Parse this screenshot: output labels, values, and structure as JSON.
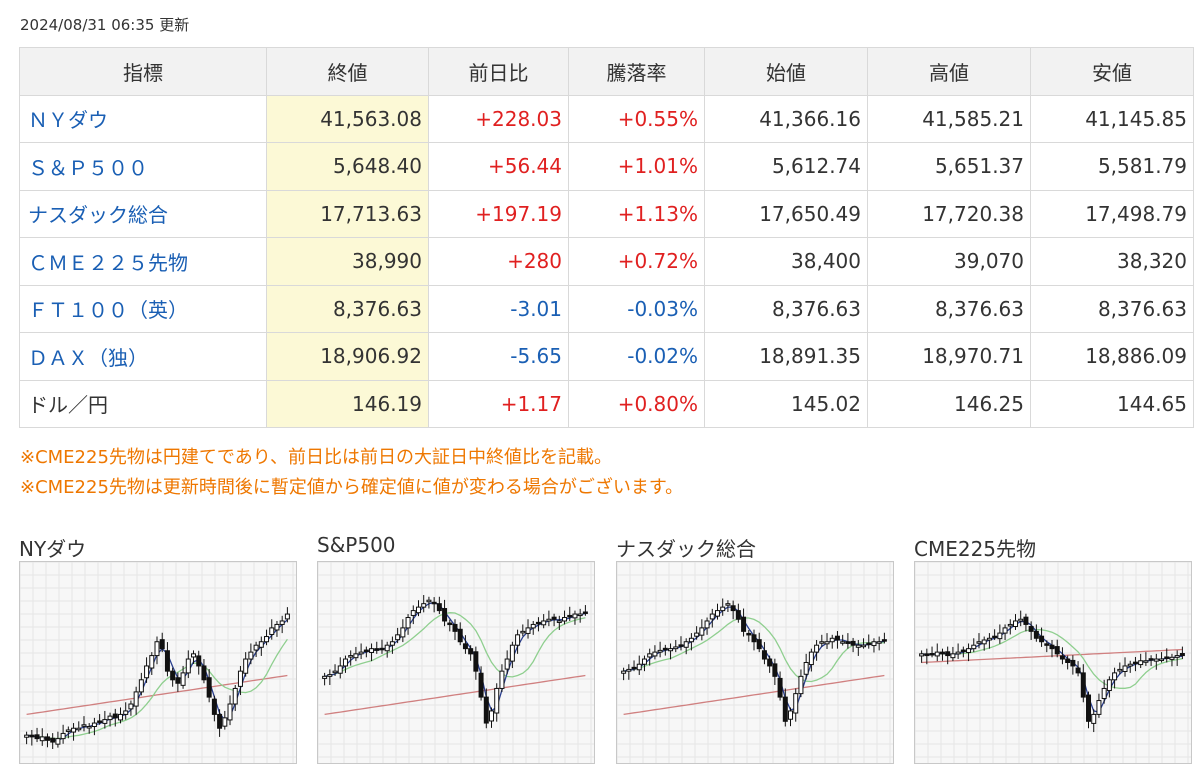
{
  "updated": "2024/08/31 06:35 更新",
  "table": {
    "headers": [
      "指標",
      "終値",
      "前日比",
      "騰落率",
      "始値",
      "高値",
      "安値"
    ],
    "rows": [
      {
        "name": "ＮＹダウ",
        "close": "41,563.08",
        "change": "+228.03",
        "rate": "+0.55%",
        "open": "41,366.16",
        "high": "41,585.21",
        "low": "41,145.85",
        "dir": "up",
        "link": true
      },
      {
        "name": "Ｓ＆Ｐ５００",
        "close": "5,648.40",
        "change": "+56.44",
        "rate": "+1.01%",
        "open": "5,612.74",
        "high": "5,651.37",
        "low": "5,581.79",
        "dir": "up",
        "link": true
      },
      {
        "name": "ナスダック総合",
        "close": "17,713.63",
        "change": "+197.19",
        "rate": "+1.13%",
        "open": "17,650.49",
        "high": "17,720.38",
        "low": "17,498.79",
        "dir": "up",
        "link": true
      },
      {
        "name": "ＣＭＥ２２５先物",
        "close": "38,990",
        "change": "+280",
        "rate": "+0.72%",
        "open": "38,400",
        "high": "39,070",
        "low": "38,320",
        "dir": "up",
        "link": true
      },
      {
        "name": "ＦＴ１００（英）",
        "close": "8,376.63",
        "change": "-3.01",
        "rate": "-0.03%",
        "open": "8,376.63",
        "high": "8,376.63",
        "low": "8,376.63",
        "dir": "down",
        "link": true
      },
      {
        "name": "ＤＡＸ（独）",
        "close": "18,906.92",
        "change": "-5.65",
        "rate": "-0.02%",
        "open": "18,891.35",
        "high": "18,970.71",
        "low": "18,886.09",
        "dir": "down",
        "link": true
      },
      {
        "name": "ドル／円",
        "close": "146.19",
        "change": "+1.17",
        "rate": "+0.80%",
        "open": "145.02",
        "high": "146.25",
        "low": "144.65",
        "dir": "up",
        "link": false
      }
    ]
  },
  "notes": [
    "※CME225先物は円建てであり、前日比は前日の大証日中終値比を記載。",
    "※CME225先物は更新時間後に暫定値から確定値に値が変わる場合がございます。"
  ],
  "colors": {
    "up": "#e02020",
    "down": "#1a5fb4",
    "note": "#ee7700",
    "close_highlight": "#fcf9d6",
    "short_ma": "#2a3f8f",
    "mid_ma": "#8fcf8f",
    "long_ma": "#d08080"
  },
  "charts": [
    {
      "title": "NYダウ",
      "closes": [
        8,
        7,
        6,
        7,
        5,
        4,
        6,
        9,
        11,
        12,
        12,
        14,
        13,
        15,
        16,
        17,
        19,
        18,
        20,
        22,
        26,
        33,
        40,
        48,
        54,
        62,
        58,
        45,
        40,
        38,
        44,
        52,
        55,
        48,
        40,
        30,
        20,
        12,
        18,
        26,
        35,
        45,
        52,
        56,
        60,
        62,
        65,
        70,
        72,
        74,
        78
      ]
    },
    {
      "title": "S&P500",
      "closes": [
        42,
        43,
        45,
        48,
        52,
        54,
        55,
        56,
        57,
        58,
        57,
        58,
        60,
        62,
        66,
        70,
        76,
        80,
        82,
        84,
        86,
        84,
        80,
        74,
        72,
        68,
        62,
        58,
        55,
        45,
        30,
        15,
        22,
        35,
        45,
        52,
        60,
        66,
        68,
        70,
        72,
        73,
        74,
        75,
        75,
        74,
        76,
        77,
        78,
        78,
        79
      ]
    },
    {
      "title": "ナスダック総合",
      "closes": [
        45,
        46,
        47,
        49,
        52,
        55,
        56,
        57,
        58,
        58,
        59,
        60,
        62,
        64,
        67,
        70,
        74,
        78,
        80,
        82,
        84,
        80,
        75,
        68,
        66,
        62,
        58,
        52,
        48,
        42,
        30,
        16,
        22,
        32,
        42,
        50,
        56,
        60,
        62,
        62,
        64,
        63,
        62,
        61,
        60,
        60,
        60,
        61,
        62,
        62,
        63
      ]
    },
    {
      "title": "CME225先物",
      "closes": [
        55,
        54,
        55,
        56,
        55,
        54,
        55,
        56,
        57,
        58,
        60,
        62,
        63,
        64,
        65,
        67,
        70,
        72,
        74,
        75,
        72,
        68,
        64,
        62,
        60,
        58,
        55,
        52,
        50,
        48,
        44,
        30,
        16,
        20,
        28,
        35,
        40,
        44,
        46,
        48,
        49,
        50,
        51,
        51,
        52,
        52,
        52,
        53,
        53,
        54,
        54
      ]
    }
  ]
}
